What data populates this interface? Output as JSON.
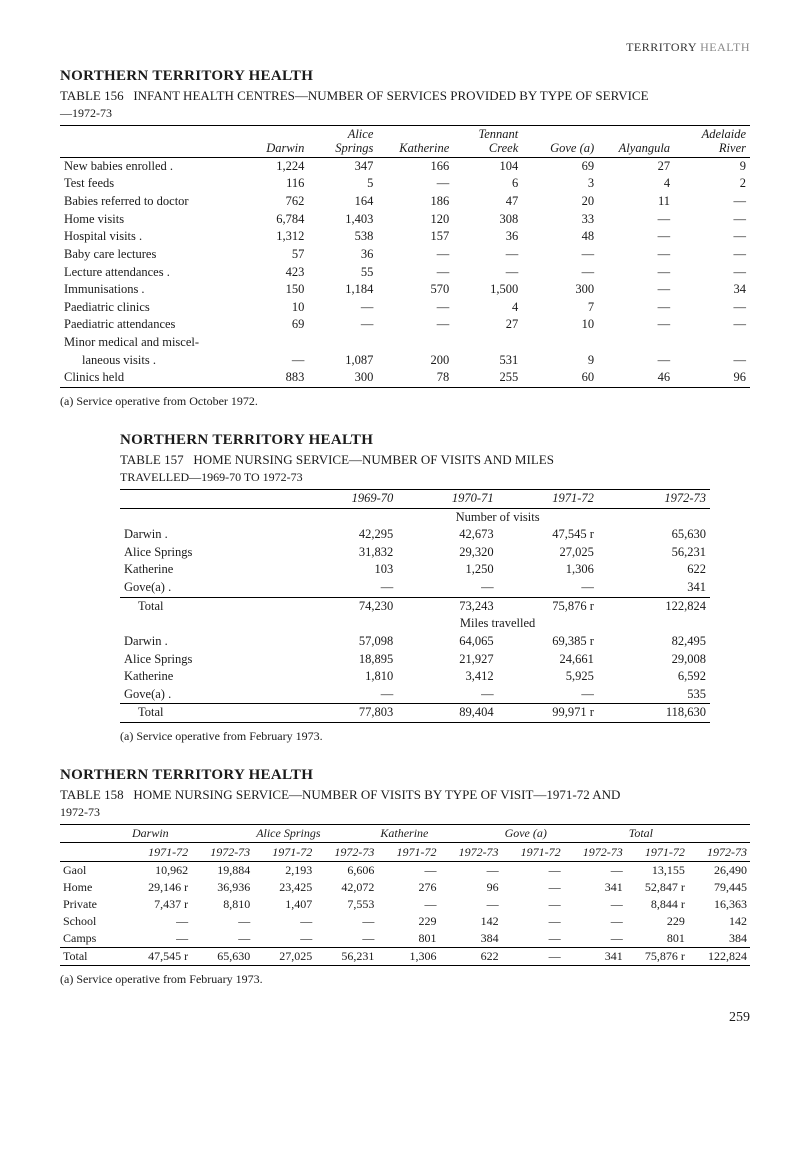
{
  "running_head": {
    "a": "TERRITORY",
    "b": "HEALTH"
  },
  "sec1": {
    "title": "NORTHERN TERRITORY HEALTH",
    "caption_a": "TABLE 156",
    "caption_b": "INFANT HEALTH CENTRES—NUMBER OF SERVICES PROVIDED BY TYPE OF SERVICE",
    "sub": "—1972-73",
    "cols": {
      "blank": "",
      "darwin": "Darwin",
      "alice1": "Alice",
      "alice2": "Springs",
      "kath": "Katherine",
      "ten1": "Tennant",
      "ten2": "Creek",
      "gove": "Gove (a)",
      "aly": "Alyangula",
      "ad1": "Adelaide",
      "ad2": "River"
    },
    "rows": [
      {
        "label": "New babies enrolled .",
        "d": "1,224",
        "a": "347",
        "k": "166",
        "t": "104",
        "g": "69",
        "al": "27",
        "ad": "9"
      },
      {
        "label": "Test feeds",
        "d": "116",
        "a": "5",
        "k": "—",
        "t": "6",
        "g": "3",
        "al": "4",
        "ad": "2"
      },
      {
        "label": "Babies referred to doctor",
        "d": "762",
        "a": "164",
        "k": "186",
        "t": "47",
        "g": "20",
        "al": "11",
        "ad": "—"
      },
      {
        "label": "Home visits",
        "d": "6,784",
        "a": "1,403",
        "k": "120",
        "t": "308",
        "g": "33",
        "al": "—",
        "ad": "—"
      },
      {
        "label": "Hospital visits .",
        "d": "1,312",
        "a": "538",
        "k": "157",
        "t": "36",
        "g": "48",
        "al": "—",
        "ad": "—"
      },
      {
        "label": "Baby care lectures",
        "d": "57",
        "a": "36",
        "k": "—",
        "t": "—",
        "g": "—",
        "al": "—",
        "ad": "—"
      },
      {
        "label": "Lecture attendances .",
        "d": "423",
        "a": "55",
        "k": "—",
        "t": "—",
        "g": "—",
        "al": "—",
        "ad": "—"
      },
      {
        "label": "Immunisations .",
        "d": "150",
        "a": "1,184",
        "k": "570",
        "t": "1,500",
        "g": "300",
        "al": "—",
        "ad": "34"
      },
      {
        "label": "Paediatric clinics",
        "d": "10",
        "a": "—",
        "k": "—",
        "t": "4",
        "g": "7",
        "al": "—",
        "ad": "—"
      },
      {
        "label": "Paediatric attendances",
        "d": "69",
        "a": "—",
        "k": "—",
        "t": "27",
        "g": "10",
        "al": "—",
        "ad": "—"
      },
      {
        "label": "Minor medical and miscel-",
        "d": "",
        "a": "",
        "k": "",
        "t": "",
        "g": "",
        "al": "",
        "ad": ""
      },
      {
        "label": "   laneous visits .",
        "d": "—",
        "a": "1,087",
        "k": "200",
        "t": "531",
        "g": "9",
        "al": "—",
        "ad": "—"
      },
      {
        "label": "Clinics held",
        "d": "883",
        "a": "300",
        "k": "78",
        "t": "255",
        "g": "60",
        "al": "46",
        "ad": "96"
      }
    ],
    "note": "(a) Service operative from October 1972."
  },
  "sec2": {
    "title": "NORTHERN TERRITORY HEALTH",
    "caption_a": "TABLE 157",
    "caption_b": "HOME NURSING SERVICE—NUMBER OF VISITS AND MILES",
    "sub": "TRAVELLED—1969-70 TO 1972-73",
    "cols": {
      "blank": "",
      "c1": "1969-70",
      "c2": "1970-71",
      "c3": "1971-72",
      "c4": "1972-73"
    },
    "span1": "Number of visits",
    "span2": "Miles travelled",
    "rows1": [
      {
        "label": "Darwin   .",
        "c1": "42,295",
        "c2": "42,673",
        "c3": "47,545 r",
        "c4": "65,630"
      },
      {
        "label": "Alice Springs",
        "c1": "31,832",
        "c2": "29,320",
        "c3": "27,025",
        "c4": "56,231"
      },
      {
        "label": "Katherine",
        "c1": "103",
        "c2": "1,250",
        "c3": "1,306",
        "c4": "622"
      },
      {
        "label": "Gove(a)  .",
        "c1": "—",
        "c2": "—",
        "c3": "—",
        "c4": "341"
      }
    ],
    "total1": {
      "label": "Total",
      "c1": "74,230",
      "c2": "73,243",
      "c3": "75,876 r",
      "c4": "122,824"
    },
    "rows2": [
      {
        "label": "Darwin   .",
        "c1": "57,098",
        "c2": "64,065",
        "c3": "69,385 r",
        "c4": "82,495"
      },
      {
        "label": "Alice Springs",
        "c1": "18,895",
        "c2": "21,927",
        "c3": "24,661",
        "c4": "29,008"
      },
      {
        "label": "Katherine",
        "c1": "1,810",
        "c2": "3,412",
        "c3": "5,925",
        "c4": "6,592"
      },
      {
        "label": "Gove(a)  .",
        "c1": "—",
        "c2": "—",
        "c3": "—",
        "c4": "535"
      }
    ],
    "total2": {
      "label": "Total",
      "c1": "77,803",
      "c2": "89,404",
      "c3": "99,971 r",
      "c4": "118,630"
    },
    "note": "(a) Service operative from February 1973."
  },
  "sec3": {
    "title": "NORTHERN TERRITORY HEALTH",
    "caption_a": "TABLE 158",
    "caption_b": "HOME NURSING SERVICE—NUMBER OF VISITS BY TYPE OF VISIT—1971-72 AND",
    "sub": "1972-73",
    "groups": {
      "darwin": "Darwin",
      "alice": "Alice Springs",
      "kath": "Katherine",
      "gove": "Gove (a)",
      "total": "Total"
    },
    "subcols": {
      "a": "1971-72",
      "b": "1972-73"
    },
    "rows": [
      {
        "label": "Gaol",
        "d1": "10,962",
        "d2": "19,884",
        "a1": "2,193",
        "a2": "6,606",
        "k1": "—",
        "k2": "—",
        "g1": "—",
        "g2": "—",
        "t1": "13,155",
        "t2": "26,490"
      },
      {
        "label": "Home",
        "d1": "29,146 r",
        "d2": "36,936",
        "a1": "23,425",
        "a2": "42,072",
        "k1": "276",
        "k2": "96",
        "g1": "—",
        "g2": "341",
        "t1": "52,847 r",
        "t2": "79,445"
      },
      {
        "label": "Private",
        "d1": "7,437 r",
        "d2": "8,810",
        "a1": "1,407",
        "a2": "7,553",
        "k1": "—",
        "k2": "—",
        "g1": "—",
        "g2": "—",
        "t1": "8,844 r",
        "t2": "16,363"
      },
      {
        "label": "School",
        "d1": "—",
        "d2": "—",
        "a1": "—",
        "a2": "—",
        "k1": "229",
        "k2": "142",
        "g1": "—",
        "g2": "—",
        "t1": "229",
        "t2": "142"
      },
      {
        "label": "Camps",
        "d1": "—",
        "d2": "—",
        "a1": "—",
        "a2": "—",
        "k1": "801",
        "k2": "384",
        "g1": "—",
        "g2": "—",
        "t1": "801",
        "t2": "384"
      }
    ],
    "total": {
      "label": "Total",
      "d1": "47,545 r",
      "d2": "65,630",
      "a1": "27,025",
      "a2": "56,231",
      "k1": "1,306",
      "k2": "622",
      "g1": "—",
      "g2": "341",
      "t1": "75,876 r",
      "t2": "122,824"
    },
    "note": "(a) Service operative from February 1973."
  },
  "page": "259"
}
